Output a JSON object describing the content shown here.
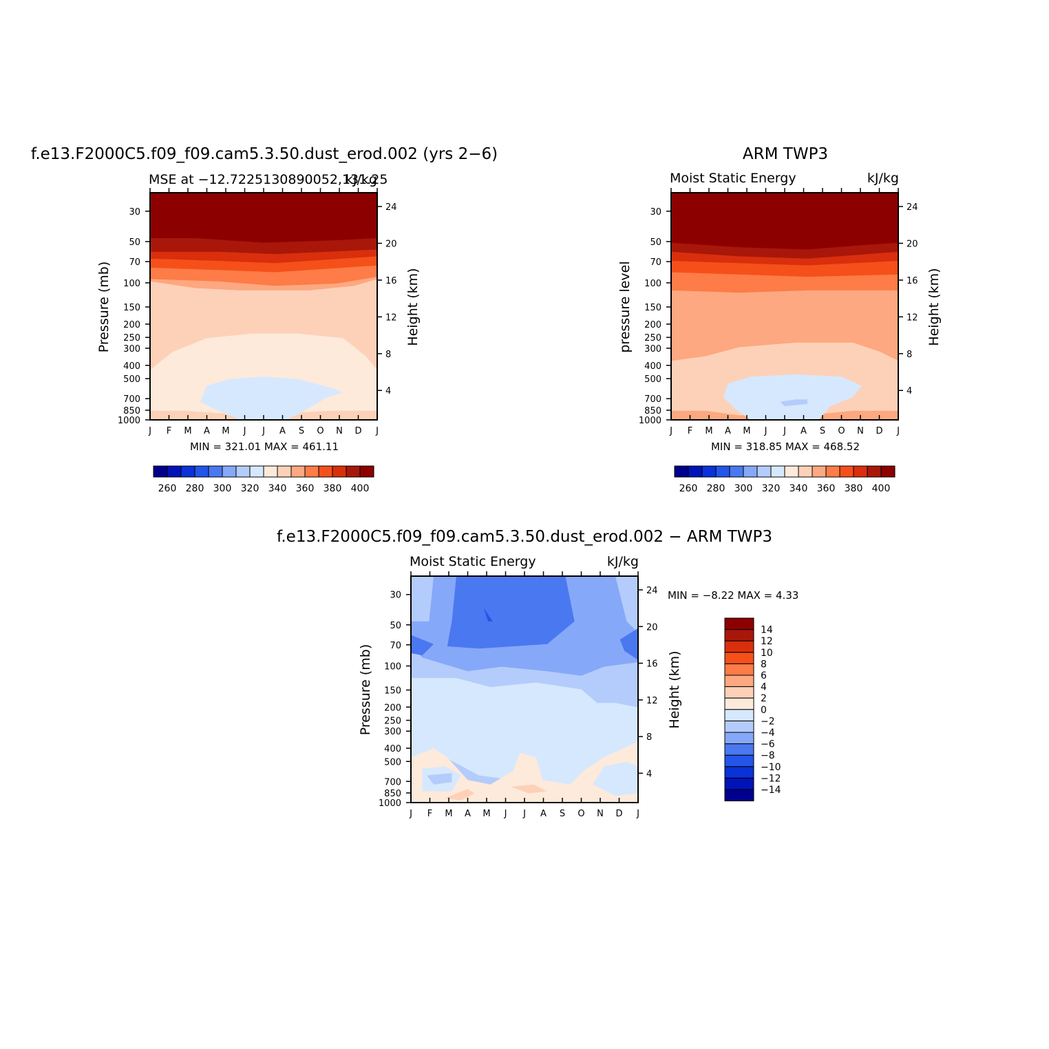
{
  "panels": [
    {
      "id": "model",
      "title": "f.e13.F2000C5.f09_f09.cam5.3.50.dust_erod.002 (yrs 2−6)",
      "left_label": "MSE at −12.7225130890052,131.25",
      "right_label": "kJ/kg",
      "ylabel": "Pressure (mb)",
      "y2label": "Height (km)",
      "stats": "MIN = 321.01  MAX = 461.11"
    },
    {
      "id": "obs",
      "title": "ARM TWP3",
      "left_label": "Moist Static Energy",
      "right_label": "kJ/kg",
      "ylabel": "pressure level",
      "y2label": "Height (km)",
      "stats": "MIN = 318.85  MAX = 468.52"
    },
    {
      "id": "diff",
      "title": "f.e13.F2000C5.f09_f09.cam5.3.50.dust_erod.002 − ARM TWP3",
      "left_label": "Moist Static Energy",
      "right_label": "kJ/kg",
      "ylabel": "Pressure (mb)",
      "y2label": "Height (km)",
      "stats": "MIN =   −8.22 MAX =    4.33"
    }
  ],
  "chart_data": [
    {
      "type": "heatmap",
      "name": "model MSE annual cycle",
      "x_ticks": [
        "J",
        "F",
        "M",
        "A",
        "M",
        "J",
        "J",
        "A",
        "S",
        "O",
        "N",
        "D",
        "J"
      ],
      "y_ticks": [
        30,
        50,
        70,
        100,
        150,
        200,
        250,
        300,
        400,
        500,
        700,
        850,
        1000
      ],
      "y2_ticks": [
        24,
        20,
        16,
        12,
        8,
        4
      ],
      "ylim_mb": [
        1000,
        22
      ],
      "colorbar_labels": [
        "260",
        "280",
        "300",
        "320",
        "340",
        "360",
        "380",
        "400"
      ],
      "min": 321.01,
      "max": 461.11,
      "bands_top_to_bottom": [
        {
          "from_mb": 22,
          "to_mb": 48,
          "level": ">400"
        },
        {
          "from_mb": 48,
          "to_mb": 57,
          "level": "390-400"
        },
        {
          "from_mb": 57,
          "to_mb": 66,
          "level": "380-390"
        },
        {
          "from_mb": 66,
          "to_mb": 77,
          "level": "370-380"
        },
        {
          "from_mb": 77,
          "to_mb": 93,
          "level": "360-370"
        },
        {
          "from_mb": 93,
          "to_mb": 125,
          "level": "350-360"
        },
        {
          "from_mb": 125,
          "to_mb": 330,
          "level": "340-350"
        },
        {
          "from_mb": 330,
          "to_mb": 900,
          "level": "330-340"
        },
        {
          "from_mb": 560,
          "to_mb": 1000,
          "level": "320-330",
          "months": "Apr-Sep"
        }
      ]
    },
    {
      "type": "heatmap",
      "name": "ARM TWP3 MSE annual cycle",
      "x_ticks": [
        "J",
        "F",
        "M",
        "A",
        "M",
        "J",
        "J",
        "A",
        "S",
        "O",
        "N",
        "D",
        "J"
      ],
      "y_ticks": [
        30,
        50,
        70,
        100,
        150,
        200,
        250,
        300,
        400,
        500,
        700,
        850,
        1000
      ],
      "y2_ticks": [
        24,
        20,
        16,
        12,
        8,
        4
      ],
      "ylim_mb": [
        1000,
        22
      ],
      "colorbar_labels": [
        "260",
        "280",
        "300",
        "320",
        "340",
        "360",
        "380",
        "400"
      ],
      "min": 318.85,
      "max": 468.52,
      "bands_top_to_bottom": [
        {
          "from_mb": 22,
          "to_mb": 55,
          "level": ">400"
        },
        {
          "from_mb": 55,
          "to_mb": 62,
          "level": "390-400"
        },
        {
          "from_mb": 62,
          "to_mb": 72,
          "level": "380-390"
        },
        {
          "from_mb": 72,
          "to_mb": 82,
          "level": "370-380"
        },
        {
          "from_mb": 82,
          "to_mb": 100,
          "level": "360-370"
        },
        {
          "from_mb": 100,
          "to_mb": 135,
          "level": "350-360"
        },
        {
          "from_mb": 135,
          "to_mb": 360,
          "level": "340-350"
        },
        {
          "from_mb": 360,
          "to_mb": 920,
          "level": "330-340"
        },
        {
          "from_mb": 550,
          "to_mb": 1000,
          "level": "320-330",
          "months": "Apr-Oct"
        },
        {
          "from_mb": 730,
          "to_mb": 770,
          "level": "310-320",
          "months": "Jul-Aug"
        }
      ]
    },
    {
      "type": "heatmap",
      "name": "model minus ARM TWP3 difference",
      "x_ticks": [
        "J",
        "F",
        "M",
        "A",
        "M",
        "J",
        "J",
        "A",
        "S",
        "O",
        "N",
        "D",
        "J"
      ],
      "y_ticks": [
        30,
        50,
        70,
        100,
        150,
        200,
        250,
        300,
        400,
        500,
        700,
        850,
        1000
      ],
      "y2_ticks": [
        24,
        20,
        16,
        12,
        8,
        4
      ],
      "ylim_mb": [
        1000,
        22
      ],
      "colorbar_labels": [
        "14",
        "12",
        "10",
        "8",
        "6",
        "4",
        "2",
        "0",
        "−2",
        "−4",
        "−6",
        "−8",
        "−10",
        "−12",
        "−14"
      ],
      "min": -8.22,
      "max": 4.33,
      "bands_top_to_bottom": [
        {
          "from_mb": 22,
          "to_mb": 85,
          "level": "-6 to -4",
          "months": "Apr-Sep"
        },
        {
          "from_mb": 22,
          "to_mb": 115,
          "level": "-4 to -2"
        },
        {
          "from_mb": 115,
          "to_mb": 160,
          "level": "-2 to 0"
        },
        {
          "from_mb": 160,
          "to_mb": 480,
          "level": "0 to -2"
        },
        {
          "from_mb": 380,
          "to_mb": 1000,
          "level": "0 to 2"
        },
        {
          "from_mb": 780,
          "to_mb": 900,
          "level": "2 to 4",
          "months": "Apr, Jul-Aug"
        }
      ]
    }
  ],
  "colors": {
    "sequential_scale": [
      "#00008c",
      "#0013b8",
      "#0a32d8",
      "#2255e8",
      "#4a78f0",
      "#86a8f8",
      "#b4ccfb",
      "#d6e8fd",
      "#fdeadb",
      "#fdd1b8",
      "#fda880",
      "#fd7c48",
      "#f5501a",
      "#d92f0d",
      "#a8170a",
      "#8c0000"
    ]
  }
}
